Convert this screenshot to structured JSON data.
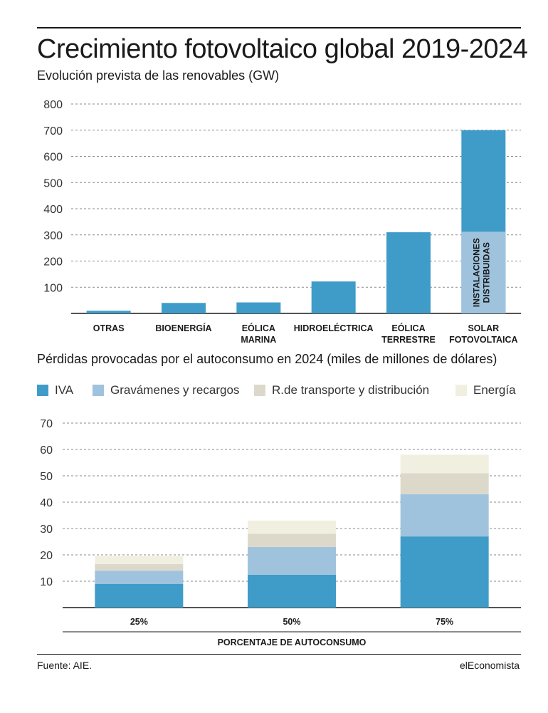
{
  "title": "Crecimiento fotovoltaico global 2019-2024",
  "subtitle": "Evolución prevista de las renovables (GW)",
  "subtitle2": "Pérdidas provocadas por el autoconsumo en 2024 (miles de millones de dólares)",
  "source": "Fuente: AIE.",
  "brand": "elEconomista",
  "legend": [
    {
      "label": "IVA",
      "color": "#3f9cc8"
    },
    {
      "label": "Gravámenes y recargos",
      "color": "#9fc3dd"
    },
    {
      "label": "R.de transporte y distribución",
      "color": "#dcd9cb"
    },
    {
      "label": "Energía",
      "color": "#f1efe0"
    }
  ],
  "chart_data": [
    {
      "type": "bar",
      "title": "Evolución prevista de las renovables (GW)",
      "categories": [
        [
          "OTRAS"
        ],
        [
          "BIOENERGÍA"
        ],
        [
          "EÓLICA",
          "MARINA"
        ],
        [
          "HIDROELÉCTRICA"
        ],
        [
          "EÓLICA",
          "TERRESTRE"
        ],
        [
          "SOLAR",
          "FOTOVOLTAICA"
        ]
      ],
      "values": [
        10,
        40,
        42,
        122,
        310,
        700
      ],
      "stacked_detail": {
        "category_index": 5,
        "lower_value": 312,
        "lower_label": "INSTALACIONES DISTRIBUIDAS",
        "lower_color": "#9fc3dd"
      },
      "ylim": [
        0,
        800
      ],
      "yticks": [
        100,
        200,
        300,
        400,
        500,
        600,
        700,
        800
      ],
      "grid": true,
      "color": "#3f9cc8"
    },
    {
      "type": "bar",
      "stacked": true,
      "title": "Pérdidas provocadas por el autoconsumo en 2024 (miles de millones de dólares)",
      "xlabel": "PORCENTAJE DE AUTOCONSUMO",
      "categories": [
        "25%",
        "50%",
        "75%"
      ],
      "series": [
        {
          "name": "IVA",
          "values": [
            9,
            12.5,
            27
          ],
          "color": "#3f9cc8"
        },
        {
          "name": "Gravámenes y recargos",
          "values": [
            5,
            10.5,
            16
          ],
          "color": "#9fc3dd"
        },
        {
          "name": "R.de transporte y distribución",
          "values": [
            2.5,
            5,
            8
          ],
          "color": "#dcd9cb"
        },
        {
          "name": "Energía",
          "values": [
            3,
            5,
            7
          ],
          "color": "#f1efe0"
        }
      ],
      "ylim": [
        0,
        70
      ],
      "yticks": [
        10,
        20,
        30,
        40,
        50,
        60,
        70
      ],
      "grid": true
    }
  ]
}
